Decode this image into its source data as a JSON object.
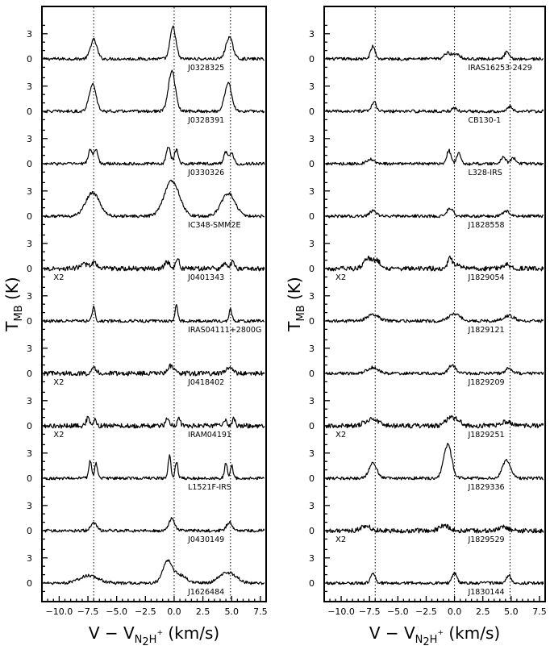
{
  "chart_data": [
    {
      "type": "line",
      "panel": "left",
      "xlim": [
        -11.5,
        8.0
      ],
      "x_ticks": [
        -10.0,
        -7.5,
        -5.0,
        -2.5,
        0.0,
        2.5,
        5.0,
        7.5
      ],
      "x_tick_labels": [
        "−10.0",
        "−7.5",
        "−5.0",
        "−2.5",
        "0.0",
        "2.5",
        "5.0",
        "7.5"
      ],
      "y_tick_values": [
        0,
        3
      ],
      "y_tick_labels": [
        "0",
        "3"
      ],
      "reference_lines_x": [
        -7.0,
        0.0,
        4.9
      ],
      "xlabel": {
        "base": "V − V",
        "sub": "N",
        "sub2": "2",
        "sub3": "H",
        "sup": "+",
        "units": " (km/s)"
      },
      "ylabel": {
        "base": "T",
        "sub": "MB",
        "units": " (K)"
      },
      "series": [
        {
          "name": "J0328325",
          "scale_label": "",
          "peaks": [
            [
              -7.0,
              2.3,
              0.28
            ],
            [
              -0.1,
              3.8,
              0.25
            ],
            [
              4.8,
              2.6,
              0.3
            ]
          ]
        },
        {
          "name": "J0328391",
          "scale_label": "",
          "peaks": [
            [
              -7.1,
              3.2,
              0.3
            ],
            [
              -0.2,
              4.8,
              0.3
            ],
            [
              4.7,
              3.4,
              0.3
            ]
          ]
        },
        {
          "name": "J0330326",
          "scale_label": "",
          "peaks": [
            [
              -7.3,
              1.6,
              0.18
            ],
            [
              -6.8,
              1.6,
              0.18
            ],
            [
              -0.5,
              2.0,
              0.18
            ],
            [
              0.2,
              1.6,
              0.18
            ],
            [
              4.5,
              1.4,
              0.18
            ],
            [
              5.0,
              1.2,
              0.18
            ]
          ]
        },
        {
          "name": "IC348-SMM2E",
          "scale_label": "",
          "peaks": [
            [
              -7.1,
              2.8,
              0.6
            ],
            [
              -0.2,
              4.2,
              0.65
            ],
            [
              4.7,
              2.7,
              0.6
            ]
          ]
        },
        {
          "name": "J0401343",
          "scale_label": "X2",
          "peaks": [
            [
              -7.8,
              0.5,
              0.4
            ],
            [
              -6.9,
              0.7,
              0.2
            ],
            [
              -0.6,
              0.8,
              0.22
            ],
            [
              0.3,
              1.2,
              0.15
            ],
            [
              4.4,
              0.7,
              0.18
            ],
            [
              5.1,
              0.9,
              0.15
            ]
          ]
        },
        {
          "name": "IRAS04111+2800G",
          "scale_label": "",
          "peaks": [
            [
              -7.0,
              1.7,
              0.13
            ],
            [
              0.2,
              1.9,
              0.12
            ],
            [
              4.9,
              1.4,
              0.12
            ]
          ]
        },
        {
          "name": "J0418402",
          "scale_label": "X2",
          "peaks": [
            [
              -7.0,
              0.8,
              0.2
            ],
            [
              -0.3,
              0.9,
              0.25
            ],
            [
              4.8,
              0.8,
              0.25
            ]
          ]
        },
        {
          "name": "IRAM04191",
          "scale_label": "X2",
          "peaks": [
            [
              -7.5,
              0.9,
              0.15
            ],
            [
              -6.9,
              0.8,
              0.12
            ],
            [
              -0.6,
              0.9,
              0.15
            ],
            [
              0.4,
              1.0,
              0.12
            ],
            [
              4.4,
              0.8,
              0.12
            ],
            [
              5.2,
              0.9,
              0.12
            ]
          ]
        },
        {
          "name": "L1521F-IRS",
          "scale_label": "",
          "peaks": [
            [
              -7.3,
              2.1,
              0.12
            ],
            [
              -6.8,
              1.8,
              0.12
            ],
            [
              -0.4,
              2.7,
              0.12
            ],
            [
              0.2,
              1.9,
              0.12
            ],
            [
              4.5,
              1.8,
              0.12
            ],
            [
              5.0,
              1.6,
              0.12
            ]
          ]
        },
        {
          "name": "J0430149",
          "scale_label": "",
          "peaks": [
            [
              -7.0,
              0.9,
              0.25
            ],
            [
              -0.2,
              1.5,
              0.25
            ],
            [
              4.8,
              1.0,
              0.25
            ]
          ]
        },
        {
          "name": "J1626484",
          "scale_label": "",
          "peaks": [
            [
              -7.4,
              0.9,
              0.8
            ],
            [
              -0.6,
              2.4,
              0.4
            ],
            [
              0.4,
              1.0,
              0.6
            ],
            [
              4.4,
              1.0,
              0.6
            ],
            [
              5.2,
              0.6,
              0.5
            ]
          ]
        }
      ]
    },
    {
      "type": "line",
      "panel": "right",
      "xlim": [
        -11.5,
        8.0
      ],
      "x_ticks": [
        -10.0,
        -7.5,
        -5.0,
        -2.5,
        0.0,
        2.5,
        5.0,
        7.5
      ],
      "x_tick_labels": [
        "−10.0",
        "−7.5",
        "−5.0",
        "−2.5",
        "0.0",
        "2.5",
        "5.0",
        "7.5"
      ],
      "y_tick_values": [
        0,
        3
      ],
      "y_tick_labels": [
        "0",
        "3"
      ],
      "reference_lines_x": [
        -7.0,
        0.0,
        4.9
      ],
      "xlabel": {
        "base": "V − V",
        "sub": "N",
        "sub2": "2",
        "sub3": "H",
        "sup": "+",
        "units": " (km/s)"
      },
      "ylabel": {
        "base": "T",
        "sub": "MB",
        "units": " (K)"
      },
      "series": [
        {
          "name": "IRAS16253-2429",
          "scale_label": "",
          "peaks": [
            [
              -7.2,
              1.5,
              0.2
            ],
            [
              -0.6,
              0.7,
              0.3
            ],
            [
              0.2,
              0.6,
              0.3
            ],
            [
              4.6,
              0.8,
              0.2
            ]
          ]
        },
        {
          "name": "CB130-1",
          "scale_label": "",
          "peaks": [
            [
              -7.1,
              1.1,
              0.2
            ],
            [
              0.0,
              0.4,
              0.2
            ],
            [
              4.9,
              0.6,
              0.2
            ]
          ]
        },
        {
          "name": "L328-IRS",
          "scale_label": "",
          "peaks": [
            [
              -7.4,
              0.5,
              0.3
            ],
            [
              -0.5,
              1.6,
              0.18
            ],
            [
              0.4,
              1.2,
              0.2
            ],
            [
              4.3,
              0.8,
              0.2
            ],
            [
              5.2,
              0.7,
              0.25
            ]
          ]
        },
        {
          "name": "J1828558",
          "scale_label": "",
          "peaks": [
            [
              -7.2,
              0.6,
              0.3
            ],
            [
              -0.4,
              1.0,
              0.25
            ],
            [
              4.6,
              0.6,
              0.3
            ]
          ]
        },
        {
          "name": "J1829054",
          "scale_label": "X2",
          "peaks": [
            [
              -7.6,
              1.2,
              0.4
            ],
            [
              -6.8,
              0.8,
              0.3
            ],
            [
              -0.4,
              1.2,
              0.2
            ],
            [
              0.3,
              0.5,
              0.3
            ],
            [
              4.6,
              0.5,
              0.3
            ]
          ]
        },
        {
          "name": "J1829121",
          "scale_label": "",
          "peaks": [
            [
              -7.2,
              0.8,
              0.5
            ],
            [
              0.0,
              0.8,
              0.5
            ],
            [
              4.8,
              0.6,
              0.5
            ]
          ]
        },
        {
          "name": "J1829209",
          "scale_label": "",
          "peaks": [
            [
              -7.2,
              0.7,
              0.5
            ],
            [
              -0.2,
              1.0,
              0.3
            ],
            [
              4.8,
              0.6,
              0.3
            ]
          ]
        },
        {
          "name": "J1829251",
          "scale_label": "X2",
          "peaks": [
            [
              -7.3,
              0.8,
              0.6
            ],
            [
              -0.4,
              0.9,
              0.4
            ],
            [
              0.3,
              0.6,
              0.3
            ],
            [
              4.6,
              0.5,
              0.4
            ]
          ]
        },
        {
          "name": "J1829336",
          "scale_label": "",
          "peaks": [
            [
              -7.2,
              1.8,
              0.35
            ],
            [
              -0.6,
              4.0,
              0.35
            ],
            [
              4.6,
              2.2,
              0.35
            ]
          ]
        },
        {
          "name": "J1829529",
          "scale_label": "X2",
          "peaks": [
            [
              -7.8,
              0.6,
              0.4
            ],
            [
              -0.9,
              0.6,
              0.4
            ],
            [
              4.3,
              0.5,
              0.4
            ]
          ]
        },
        {
          "name": "J1830144",
          "scale_label": "",
          "peaks": [
            [
              -7.2,
              1.1,
              0.2
            ],
            [
              0.0,
              1.2,
              0.2
            ],
            [
              4.8,
              1.0,
              0.2
            ]
          ]
        }
      ]
    }
  ]
}
